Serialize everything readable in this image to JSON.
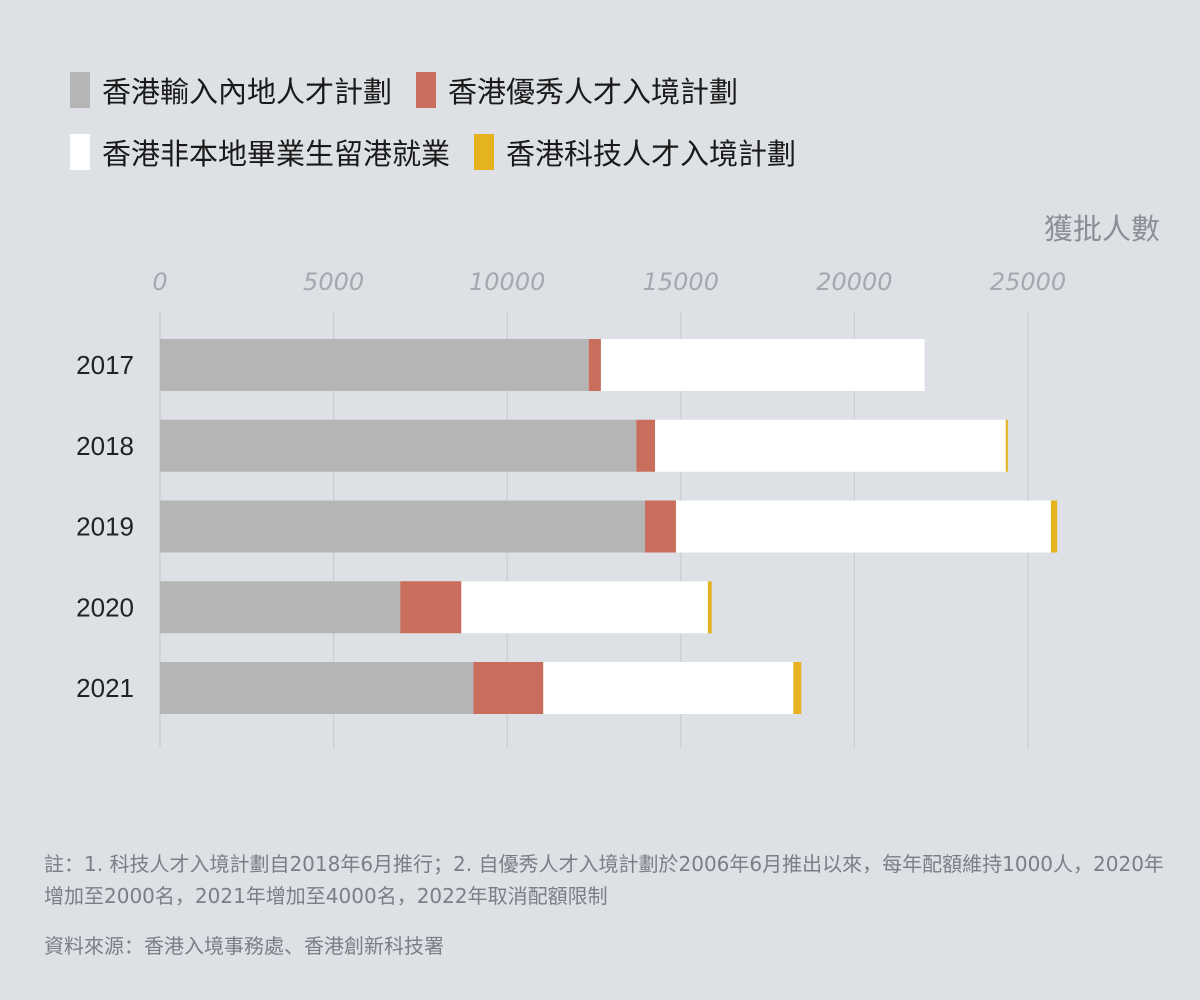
{
  "chart_data": {
    "type": "bar",
    "orientation": "horizontal",
    "stacked": true,
    "unit_label": "獲批人數",
    "categories": [
      "2017",
      "2018",
      "2019",
      "2020",
      "2021"
    ],
    "series": [
      {
        "name": "香港輸入內地人才計劃",
        "color": "#b5b5b5",
        "values": [
          12350,
          13720,
          13970,
          6920,
          9030
        ]
      },
      {
        "name": "香港優秀人才入境計劃",
        "color": "#c96d5c",
        "values": [
          350,
          540,
          890,
          1760,
          2010
        ]
      },
      {
        "name": "香港非本地畢業生留港就業",
        "color": "#ffffff",
        "values": [
          9320,
          10100,
          10800,
          7100,
          7200
        ]
      },
      {
        "name": "香港科技人才入境計劃",
        "color": "#e6b320",
        "values": [
          0,
          60,
          180,
          110,
          230
        ]
      }
    ],
    "xlim": [
      0,
      25000
    ],
    "xticks": [
      0,
      5000,
      10000,
      15000,
      20000,
      25000
    ],
    "grid": true,
    "legend_position": "top-left"
  },
  "notes": "註：1. 科技人才入境計劃自2018年6月推行；2. 自優秀人才入境計劃於2006年6月推出以來，每年配額維持1000人，2020年增加至2000名，2021年增加至4000名，2022年取消配額限制",
  "source": "資料來源：香港入境事務處、香港創新科技署"
}
